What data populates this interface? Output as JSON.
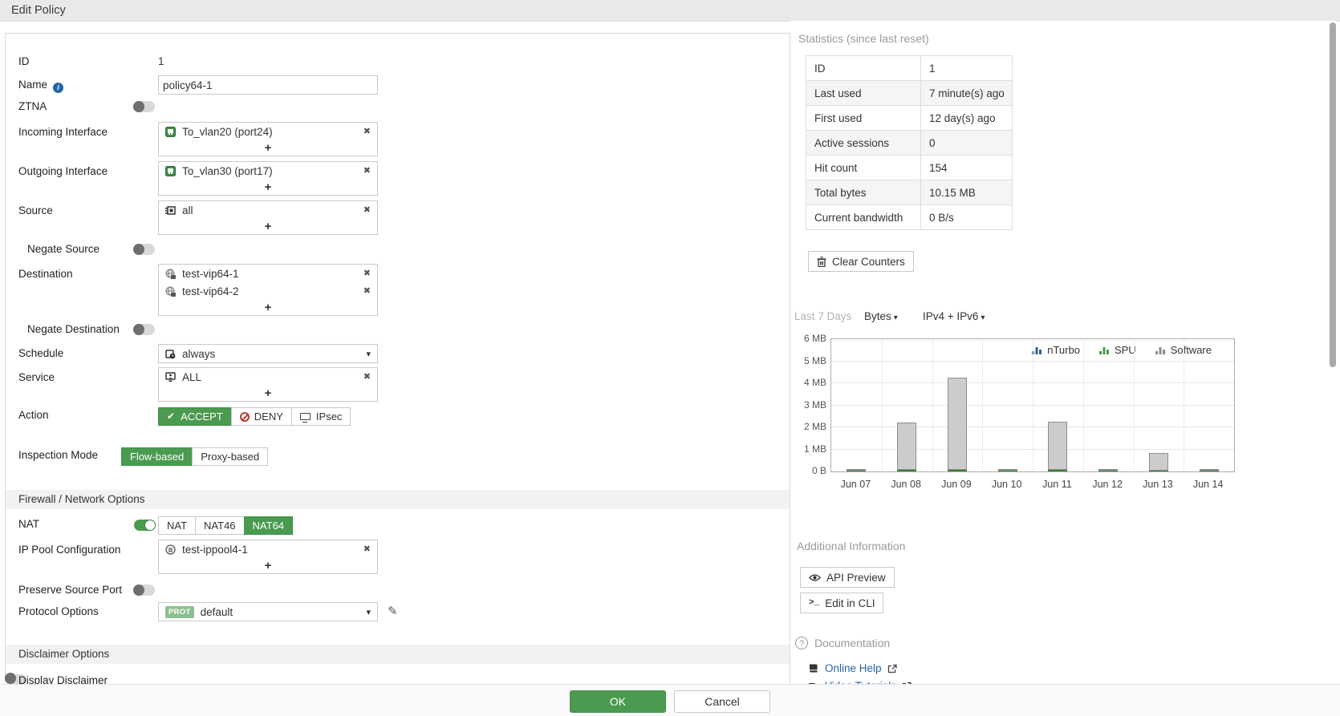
{
  "icons": {
    "check": "✔",
    "cross": "✖",
    "plus": "+",
    "caret": "▾",
    "pencil": "✎",
    "info": "i",
    "question": "?",
    "cli": ">_"
  },
  "colors": {
    "accent_green": "#4a9a50",
    "link_blue": "#2265a5",
    "deny_red": "#c0392b"
  },
  "header": {
    "title": "Edit Policy"
  },
  "form": {
    "id": {
      "label": "ID",
      "value": "1"
    },
    "name": {
      "label": "Name",
      "value": "policy64-1"
    },
    "ztna": {
      "label": "ZTNA",
      "enabled": false
    },
    "incoming_interface": {
      "label": "Incoming Interface",
      "items": [
        "To_vlan20 (port24)"
      ]
    },
    "outgoing_interface": {
      "label": "Outgoing Interface",
      "items": [
        "To_vlan30 (port17)"
      ]
    },
    "source": {
      "label": "Source",
      "items": [
        "all"
      ]
    },
    "negate_source": {
      "label": "Negate Source",
      "enabled": false
    },
    "destination": {
      "label": "Destination",
      "items": [
        "test-vip64-1",
        "test-vip64-2"
      ]
    },
    "negate_destination": {
      "label": "Negate Destination",
      "enabled": false
    },
    "schedule": {
      "label": "Schedule",
      "value": "always"
    },
    "service": {
      "label": "Service",
      "items": [
        "ALL"
      ]
    },
    "action": {
      "label": "Action",
      "options": [
        "ACCEPT",
        "DENY",
        "IPsec"
      ],
      "selected": "ACCEPT"
    },
    "inspection_mode": {
      "label": "Inspection Mode",
      "options": [
        "Flow-based",
        "Proxy-based"
      ],
      "selected": "Flow-based"
    },
    "firewall_section": "Firewall / Network Options",
    "nat": {
      "label": "NAT",
      "enabled": true,
      "options": [
        "NAT",
        "NAT46",
        "NAT64"
      ],
      "selected": "NAT64"
    },
    "ip_pool": {
      "label": "IP Pool Configuration",
      "items": [
        "test-ippool4-1"
      ]
    },
    "preserve_source_port": {
      "label": "Preserve Source Port",
      "enabled": false
    },
    "protocol_options": {
      "label": "Protocol Options",
      "badge": "PROT",
      "value": "default"
    },
    "disclaimer_section": "Disclaimer Options",
    "display_disclaimer": {
      "label": "Display Disclaimer",
      "enabled": false
    }
  },
  "statistics": {
    "title": "Statistics (since last reset)",
    "rows": [
      {
        "label": "ID",
        "value": "1"
      },
      {
        "label": "Last used",
        "value": "7 minute(s) ago"
      },
      {
        "label": "First used",
        "value": "12 day(s) ago"
      },
      {
        "label": "Active sessions",
        "value": "0"
      },
      {
        "label": "Hit count",
        "value": "154"
      },
      {
        "label": "Total bytes",
        "value": "10.15 MB"
      },
      {
        "label": "Current bandwidth",
        "value": "0 B/s"
      }
    ],
    "clear_button": "Clear Counters"
  },
  "chart_data": {
    "type": "bar",
    "stacked": true,
    "period_label": "Last 7 Days",
    "unit_dropdown": "Bytes",
    "scope_dropdown": "IPv4 + IPv6",
    "categories": [
      "Jun 07",
      "Jun 08",
      "Jun 09",
      "Jun 10",
      "Jun 11",
      "Jun 12",
      "Jun 13",
      "Jun 14"
    ],
    "series": [
      {
        "name": "nTurbo",
        "color": "#2f6491",
        "border": "#2f6491",
        "legend_color": "#2f6491",
        "values_mb": [
          0,
          0,
          0,
          0,
          0,
          0,
          0,
          0
        ]
      },
      {
        "name": "SPU",
        "color": "#4a9a50",
        "border": "#3a7d3f",
        "legend_color": "#4a9a50",
        "values_mb": [
          0.03,
          0.07,
          0.07,
          0.03,
          0.07,
          0.03,
          0.05,
          0.02
        ]
      },
      {
        "name": "Software",
        "color": "#cccccc",
        "border": "#8d8d8d",
        "legend_color": "#8d8d8d",
        "values_mb": [
          0.04,
          2.15,
          4.18,
          0.04,
          2.18,
          0.04,
          0.8,
          0.02
        ]
      }
    ],
    "yticks": [
      "0 B",
      "1 MB",
      "2 MB",
      "3 MB",
      "4 MB",
      "5 MB",
      "6 MB"
    ],
    "ylim_mb": [
      0,
      6
    ],
    "legend": [
      "nTurbo",
      "SPU",
      "Software"
    ],
    "legend_position": "top-right",
    "grid": true
  },
  "additional": {
    "title": "Additional Information",
    "api_preview": "API Preview",
    "edit_in_cli": "Edit in CLI"
  },
  "documentation": {
    "title": "Documentation",
    "online_help": "Online Help",
    "video_tutorials": "Video Tutorials"
  },
  "footer": {
    "ok": "OK",
    "cancel": "Cancel"
  }
}
